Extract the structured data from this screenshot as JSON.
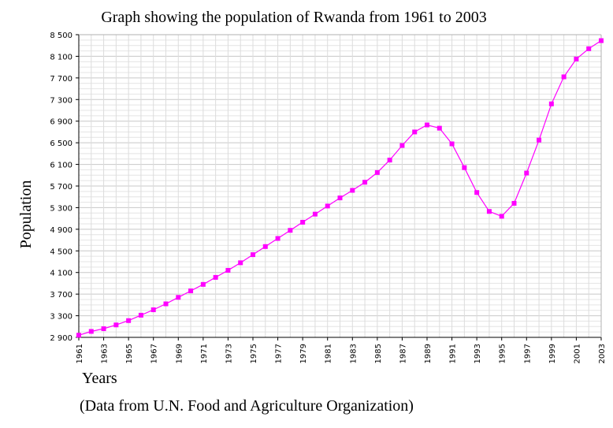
{
  "chart_data": {
    "type": "line",
    "title": "Graph showing the population of Rwanda from 1961 to 2003",
    "xlabel": "Years",
    "ylabel": "Population",
    "note": "(Data from U.N. Food and Agriculture Organization)",
    "ylim": [
      2900,
      8500
    ],
    "xlim": [
      1961,
      2003
    ],
    "grid": true,
    "y_ticks": [
      "2 900",
      "3 300",
      "3 700",
      "4 100",
      "4 500",
      "4 900",
      "5 300",
      "5 700",
      "6 100",
      "6 500",
      "6 900",
      "7 300",
      "7 700",
      "8 100",
      "8 500"
    ],
    "x_ticks": [
      "1961",
      "1963",
      "1965",
      "1967",
      "1969",
      "1971",
      "1973",
      "1975",
      "1977",
      "1979",
      "1981",
      "1983",
      "1985",
      "1987",
      "1989",
      "1991",
      "1993",
      "1995",
      "1997",
      "1999",
      "2001",
      "2003"
    ],
    "series": [
      {
        "color": "#ff00ff",
        "x": [
          1961,
          1962,
          1963,
          1964,
          1965,
          1966,
          1967,
          1968,
          1969,
          1970,
          1971,
          1972,
          1973,
          1974,
          1975,
          1976,
          1977,
          1978,
          1979,
          1980,
          1981,
          1982,
          1983,
          1984,
          1985,
          1986,
          1987,
          1988,
          1989,
          1990,
          1991,
          1992,
          1993,
          1994,
          1995,
          1996,
          1997,
          1998,
          1999,
          2000,
          2001,
          2002,
          2003
        ],
        "values": [
          2940,
          3010,
          3060,
          3130,
          3210,
          3310,
          3410,
          3520,
          3640,
          3760,
          3880,
          4010,
          4140,
          4280,
          4430,
          4580,
          4730,
          4880,
          5030,
          5180,
          5330,
          5480,
          5620,
          5770,
          5950,
          6180,
          6450,
          6700,
          6830,
          6770,
          6480,
          6040,
          5580,
          5230,
          5140,
          5380,
          5940,
          6550,
          7220,
          7720,
          8050,
          8240,
          8390
        ]
      }
    ]
  }
}
